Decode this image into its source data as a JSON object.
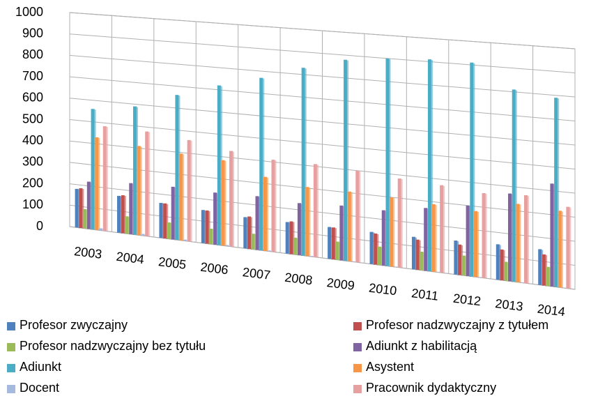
{
  "chart_data": {
    "type": "bar3d",
    "categories": [
      "2003",
      "2004",
      "2005",
      "2006",
      "2007",
      "2008",
      "2009",
      "2010",
      "2011",
      "2012",
      "2013",
      "2014"
    ],
    "series": [
      {
        "name": "Profesor zwyczajny",
        "color": "#4f81bd",
        "values": [
          180,
          170,
          160,
          150,
          140,
          140,
          140,
          140,
          140,
          145,
          150,
          150
        ]
      },
      {
        "name": "Profesor nadzwyczajny z tytułem",
        "color": "#c0504d",
        "values": [
          185,
          175,
          160,
          150,
          145,
          145,
          140,
          135,
          130,
          130,
          130,
          130
        ]
      },
      {
        "name": "Profesor nadzwyczajny bez tytułu",
        "color": "#9bbb59",
        "values": [
          90,
          80,
          75,
          70,
          70,
          75,
          80,
          80,
          80,
          85,
          80,
          80
        ]
      },
      {
        "name": "Adiunkt z habilitacją",
        "color": "#8064a2",
        "values": [
          220,
          235,
          240,
          235,
          240,
          230,
          240,
          240,
          270,
          300,
          370,
          430
        ]
      },
      {
        "name": "Adiunkt",
        "color": "#4bacc6",
        "values": [
          560,
          590,
          660,
          720,
          770,
          830,
          880,
          900,
          910,
          910,
          810,
          790
        ]
      },
      {
        "name": "Asystent",
        "color": "#f79646",
        "values": [
          430,
          410,
          395,
          385,
          330,
          305,
          305,
          300,
          290,
          280,
          330,
          320
        ]
      },
      {
        "name": "Docent",
        "color": "#a6b9df",
        "values": [
          10,
          8,
          6,
          5,
          4,
          3,
          2,
          2,
          2,
          2,
          1,
          1
        ]
      },
      {
        "name": "Pracownik dydaktyczny",
        "color": "#e6a0a0",
        "values": [
          485,
          480,
          460,
          430,
          410,
          410,
          400,
          385,
          375,
          360,
          370,
          340
        ]
      }
    ],
    "ylim": [
      0,
      1000
    ],
    "yticks": [
      0,
      100,
      200,
      300,
      400,
      500,
      600,
      700,
      800,
      900,
      1000
    ],
    "grid": true
  }
}
